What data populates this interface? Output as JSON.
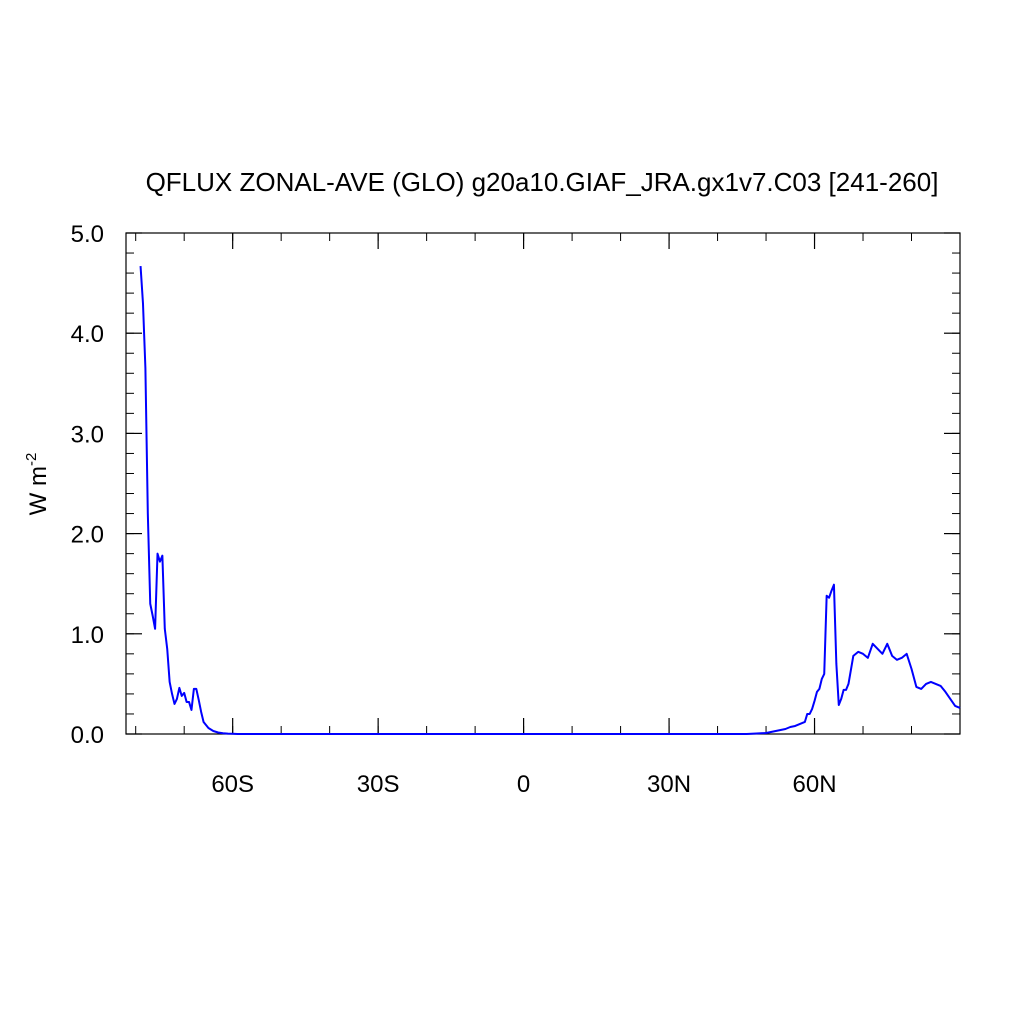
{
  "chart_data": {
    "type": "line",
    "title": "QFLUX ZONAL-AVE (GLO) g20a10.GIAF_JRA.gx1v7.C03 [241-260]",
    "ylabel": "W m",
    "ylabel_exponent": "-2",
    "xlim": [
      -82,
      90
    ],
    "ylim": [
      0,
      5
    ],
    "x_ticks": [
      {
        "value": -60,
        "label": "60S"
      },
      {
        "value": -30,
        "label": "30S"
      },
      {
        "value": 0,
        "label": "0"
      },
      {
        "value": 30,
        "label": "30N"
      },
      {
        "value": 60,
        "label": "60N"
      }
    ],
    "y_ticks": [
      {
        "value": 0,
        "label": "0.0"
      },
      {
        "value": 1,
        "label": "1.0"
      },
      {
        "value": 2,
        "label": "2.0"
      },
      {
        "value": 3,
        "label": "3.0"
      },
      {
        "value": 4,
        "label": "4.0"
      },
      {
        "value": 5,
        "label": "5.0"
      }
    ],
    "series": [
      {
        "color": "#0000ff",
        "x": [
          -79,
          -78.5,
          -78,
          -77.5,
          -77,
          -76.5,
          -76,
          -75.5,
          -75,
          -74.5,
          -74,
          -73.5,
          -73,
          -72.5,
          -72,
          -71.5,
          -71,
          -70.5,
          -70,
          -69.5,
          -69,
          -68.5,
          -68,
          -67.5,
          -67,
          -66.5,
          -66,
          -65,
          -64,
          -63,
          -62,
          -61,
          -60,
          -59,
          -58,
          -56,
          -54,
          -50,
          -45,
          -40,
          -30,
          -20,
          -10,
          0,
          10,
          20,
          30,
          40,
          44,
          46,
          48,
          50,
          51,
          52,
          53,
          54,
          55,
          56,
          57,
          58,
          58.5,
          59,
          59.5,
          60,
          60.5,
          61,
          61.5,
          62,
          62.5,
          63,
          63.5,
          64,
          64.5,
          65,
          65.5,
          66,
          66.5,
          67,
          68,
          69,
          70,
          71,
          72,
          73,
          74,
          75,
          76,
          77,
          78,
          79,
          80,
          81,
          82,
          83,
          84,
          85,
          86,
          87,
          88,
          89,
          90
        ],
        "y": [
          4.67,
          4.3,
          3.65,
          2.2,
          1.3,
          1.18,
          1.05,
          1.8,
          1.72,
          1.78,
          1.05,
          0.85,
          0.52,
          0.4,
          0.3,
          0.35,
          0.46,
          0.38,
          0.41,
          0.32,
          0.32,
          0.24,
          0.45,
          0.45,
          0.34,
          0.22,
          0.12,
          0.06,
          0.03,
          0.015,
          0.008,
          0.004,
          0.002,
          0.0,
          0.0,
          0.0,
          0.0,
          0.0,
          0.0,
          0.0,
          0.0,
          0.0,
          0.0,
          0.0,
          0.0,
          0.0,
          0.0,
          0.0,
          0.0,
          0.0,
          0.005,
          0.01,
          0.02,
          0.03,
          0.04,
          0.05,
          0.07,
          0.08,
          0.1,
          0.12,
          0.2,
          0.2,
          0.25,
          0.33,
          0.42,
          0.45,
          0.55,
          0.6,
          1.38,
          1.36,
          1.43,
          1.49,
          0.7,
          0.29,
          0.35,
          0.44,
          0.44,
          0.5,
          0.78,
          0.82,
          0.8,
          0.76,
          0.9,
          0.85,
          0.8,
          0.9,
          0.78,
          0.74,
          0.76,
          0.8,
          0.65,
          0.47,
          0.45,
          0.5,
          0.52,
          0.5,
          0.48,
          0.42,
          0.35,
          0.28,
          0.26
        ]
      }
    ]
  }
}
